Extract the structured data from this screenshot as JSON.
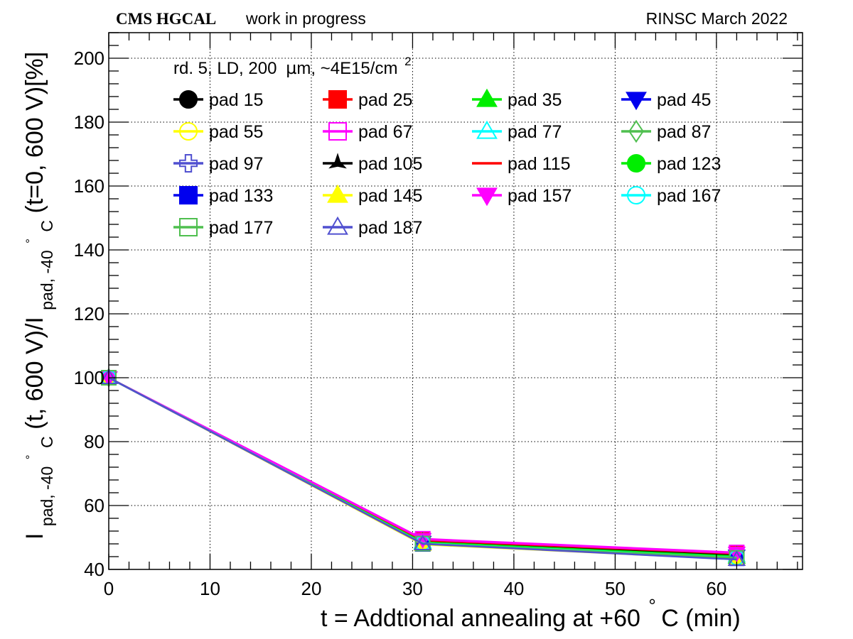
{
  "header": {
    "experiment": "CMS HGCAL",
    "status": "work in progress",
    "facility_date": "RINSC March 2022"
  },
  "chart_data": {
    "type": "line",
    "title": "",
    "legend_header": {
      "prefix": "rd. 5, LD, 200",
      "micro": "µ",
      "suffix": "m, ~4E15/cm",
      "sup": "2"
    },
    "legend_placement": "top-left",
    "grid": true,
    "xlabel": {
      "main": "t = Addtional annealing at +60",
      "degree": "°",
      "tail": "C (min)"
    },
    "ylabel": {
      "I1": "I",
      "sub1": "pad, -40",
      "deg1": "°",
      "c1": "C",
      "mid": "(t, 600 V)/I",
      "sub2": "pad, -40",
      "deg2": "°",
      "c2": "C",
      "tail": "(t=0, 600 V)[%]"
    },
    "xlim": [
      0,
      68.5
    ],
    "ylim": [
      40,
      208
    ],
    "x_ticks": [
      0,
      10,
      20,
      30,
      40,
      50,
      60
    ],
    "y_ticks": [
      40,
      60,
      80,
      100,
      120,
      140,
      160,
      180,
      200
    ],
    "x": [
      0,
      31,
      62
    ],
    "series": [
      {
        "name": "pad 15",
        "color": "#000000",
        "marker": "circle-filled",
        "values": [
          100,
          48.8,
          44.5
        ]
      },
      {
        "name": "pad 25",
        "color": "#ff0000",
        "marker": "square-filled",
        "values": [
          100,
          49.2,
          45.0
        ]
      },
      {
        "name": "pad 35",
        "color": "#00ee00",
        "marker": "triangle-up-filled",
        "values": [
          100,
          48.3,
          43.8
        ]
      },
      {
        "name": "pad 45",
        "color": "#0000ee",
        "marker": "triangle-down-filled",
        "values": [
          100,
          48.5,
          44.2
        ]
      },
      {
        "name": "pad 55",
        "color": "#ffff00",
        "marker": "circle-open",
        "values": [
          100,
          49.0,
          44.7
        ]
      },
      {
        "name": "pad 67",
        "color": "#ff00ff",
        "marker": "square-open",
        "values": [
          100,
          49.6,
          45.3
        ]
      },
      {
        "name": "pad 77",
        "color": "#00ffff",
        "marker": "triangle-up-open",
        "values": [
          100,
          48.6,
          44.3
        ]
      },
      {
        "name": "pad 87",
        "color": "#4fbf4f",
        "marker": "diamond-open",
        "values": [
          100,
          48.7,
          44.4
        ]
      },
      {
        "name": "pad 97",
        "color": "#5050d0",
        "marker": "cross-open",
        "values": [
          100,
          48.4,
          44.0
        ]
      },
      {
        "name": "pad 105",
        "color": "#000000",
        "marker": "star-filled",
        "values": [
          100,
          48.9,
          44.6
        ]
      },
      {
        "name": "pad 115",
        "color": "#ff0000",
        "marker": "none",
        "values": [
          100,
          49.1,
          44.9
        ]
      },
      {
        "name": "pad 123",
        "color": "#00ee00",
        "marker": "circle-filled",
        "values": [
          100,
          48.5,
          44.1
        ]
      },
      {
        "name": "pad 133",
        "color": "#0000ee",
        "marker": "square-filled",
        "values": [
          100,
          48.0,
          43.5
        ]
      },
      {
        "name": "pad 145",
        "color": "#ffff00",
        "marker": "triangle-up-filled",
        "values": [
          100,
          47.8,
          43.2
        ]
      },
      {
        "name": "pad 157",
        "color": "#ff00ff",
        "marker": "triangle-down-filled",
        "values": [
          100,
          49.4,
          45.1
        ]
      },
      {
        "name": "pad 167",
        "color": "#00ffff",
        "marker": "circle-open",
        "values": [
          100,
          48.2,
          43.7
        ]
      },
      {
        "name": "pad 177",
        "color": "#4fbf4f",
        "marker": "square-open",
        "values": [
          100,
          48.1,
          43.6
        ]
      },
      {
        "name": "pad 187",
        "color": "#5050d0",
        "marker": "triangle-up-open",
        "values": [
          100,
          48.0,
          43.1
        ]
      }
    ]
  }
}
